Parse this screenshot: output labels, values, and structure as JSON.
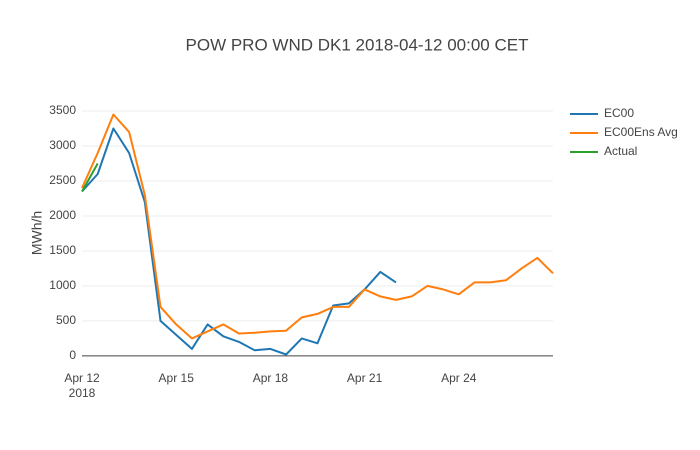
{
  "chart_data": {
    "type": "line",
    "title": "POW PRO WND DK1 2018-04-12 00:00 CET",
    "y_label": "MWh/h",
    "x": [
      "2018-04-12 00:00",
      "2018-04-12 12:00",
      "2018-04-13 00:00",
      "2018-04-13 12:00",
      "2018-04-14 00:00",
      "2018-04-14 12:00",
      "2018-04-15 00:00",
      "2018-04-15 12:00",
      "2018-04-16 00:00",
      "2018-04-16 12:00",
      "2018-04-17 00:00",
      "2018-04-17 12:00",
      "2018-04-18 00:00",
      "2018-04-18 12:00",
      "2018-04-19 00:00",
      "2018-04-19 12:00",
      "2018-04-20 00:00",
      "2018-04-20 12:00",
      "2018-04-21 00:00",
      "2018-04-21 12:00",
      "2018-04-22 00:00",
      "2018-04-22 12:00",
      "2018-04-23 00:00",
      "2018-04-23 12:00",
      "2018-04-24 00:00",
      "2018-04-24 12:00",
      "2018-04-25 00:00",
      "2018-04-25 12:00",
      "2018-04-26 00:00",
      "2018-04-26 12:00",
      "2018-04-27 00:00"
    ],
    "series": [
      {
        "name": "EC00",
        "color": "#1f77b4",
        "values": [
          2350,
          2600,
          3250,
          2900,
          2200,
          500,
          300,
          100,
          450,
          280,
          200,
          80,
          100,
          20,
          250,
          180,
          720,
          750,
          950,
          1200,
          1050,
          null,
          null,
          null,
          null,
          null,
          null,
          null,
          null,
          null,
          null
        ]
      },
      {
        "name": "EC00Ens Avg",
        "color": "#ff7f0e",
        "values": [
          2400,
          2900,
          3450,
          3200,
          2300,
          700,
          450,
          250,
          350,
          450,
          320,
          330,
          350,
          360,
          550,
          600,
          700,
          700,
          950,
          850,
          800,
          850,
          1000,
          950,
          880,
          1050,
          1050,
          1080,
          1250,
          1400,
          1180
        ]
      },
      {
        "name": "Actual",
        "color": "#2ca02c",
        "values": [
          2350,
          2750,
          null,
          null,
          null,
          null,
          null,
          null,
          null,
          null,
          null,
          null,
          null,
          null,
          null,
          null,
          null,
          null,
          null,
          null,
          null,
          null,
          null,
          null,
          null,
          null,
          null,
          null,
          null,
          null,
          null
        ]
      }
    ],
    "xlim": [
      "2018-04-12 00:00",
      "2018-04-27 00:00"
    ],
    "xticks": [
      {
        "value": "2018-04-12 00:00",
        "label": "Apr 12\n2018"
      },
      {
        "value": "2018-04-15 00:00",
        "label": "Apr 15"
      },
      {
        "value": "2018-04-18 00:00",
        "label": "Apr 18"
      },
      {
        "value": "2018-04-21 00:00",
        "label": "Apr 21"
      },
      {
        "value": "2018-04-24 00:00",
        "label": "Apr 24"
      }
    ],
    "ylim": [
      -130,
      3600
    ],
    "yticks": [
      0,
      500,
      1000,
      1500,
      2000,
      2500,
      3000,
      3500
    ],
    "grid": true
  }
}
